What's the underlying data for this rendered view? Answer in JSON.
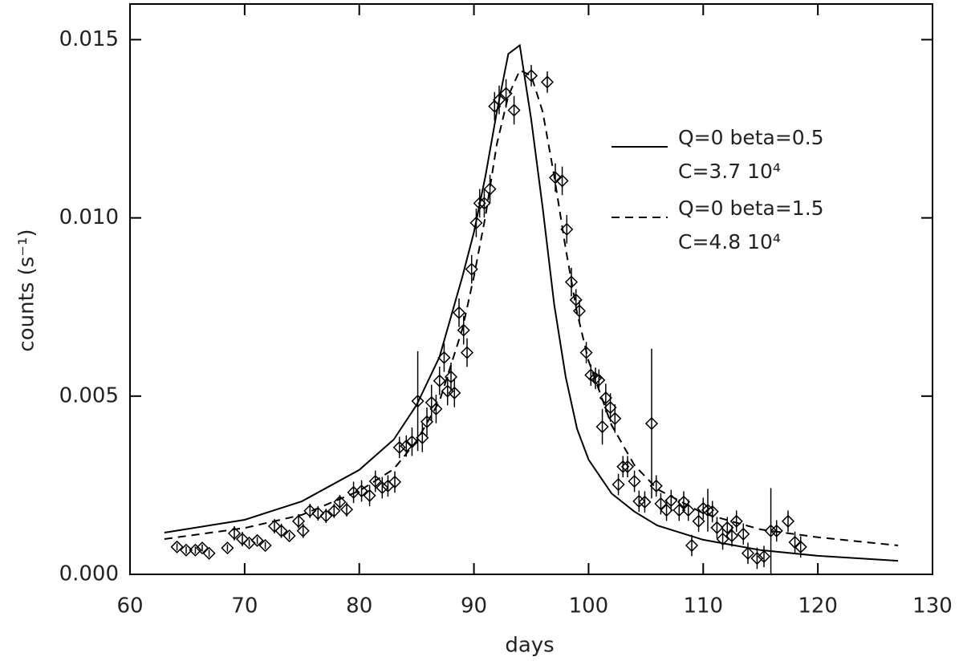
{
  "chart_data": {
    "type": "scatter",
    "xlabel": "days",
    "ylabel": "counts (s⁻¹)",
    "xlim": [
      60,
      130
    ],
    "ylim": [
      0,
      0.016
    ],
    "xticks": [
      60,
      70,
      80,
      90,
      100,
      110,
      120,
      130
    ],
    "yticks": [
      {
        "value": 0,
        "label": "0.000"
      },
      {
        "value": 0.005,
        "label": "0.005"
      },
      {
        "value": 0.01,
        "label": "0.010"
      },
      {
        "value": 0.015,
        "label": "0.015"
      }
    ],
    "color": "#000000",
    "points": {
      "x": [
        64.1,
        64.9,
        65.7,
        66.3,
        66.9,
        68.5,
        69.1,
        69.8,
        70.4,
        71.1,
        71.8,
        72.6,
        73.2,
        73.9,
        74.7,
        75.1,
        75.7,
        76.4,
        77.1,
        77.8,
        78.3,
        78.9,
        79.5,
        80.2,
        80.9,
        81.4,
        82.0,
        82.5,
        83.1,
        83.5,
        84.1,
        84.6,
        85.1,
        85.5,
        85.9,
        86.3,
        86.7,
        87.0,
        87.4,
        87.7,
        88.0,
        88.3,
        88.7,
        89.1,
        89.4,
        89.8,
        90.2,
        90.5,
        90.9,
        91.4,
        91.8,
        92.2,
        92.8,
        93.5,
        95.0,
        96.4,
        97.1,
        97.7,
        98.1,
        98.5,
        98.9,
        99.2,
        99.8,
        100.2,
        100.6,
        100.9,
        101.2,
        101.5,
        101.9,
        102.3,
        102.6,
        103.0,
        103.4,
        104.0,
        104.4,
        104.9,
        105.5,
        105.9,
        106.3,
        106.8,
        107.2,
        107.9,
        108.3,
        108.7,
        109.0,
        109.6,
        110.0,
        110.4,
        110.8,
        111.2,
        111.7,
        112.1,
        112.5,
        112.9,
        113.5,
        113.9,
        114.7,
        115.3,
        115.9,
        116.4,
        117.4,
        118.0,
        118.5
      ],
      "values": [
        0.00077,
        0.00068,
        0.00068,
        0.00074,
        0.00059,
        0.00074,
        0.00115,
        0.00099,
        0.00088,
        0.00095,
        0.00081,
        0.00135,
        0.00122,
        0.00108,
        0.00149,
        0.00122,
        0.00178,
        0.00171,
        0.00164,
        0.00178,
        0.00203,
        0.00182,
        0.0023,
        0.00234,
        0.00221,
        0.00261,
        0.00243,
        0.00248,
        0.00259,
        0.00356,
        0.0036,
        0.00372,
        0.00486,
        0.00383,
        0.00428,
        0.00482,
        0.00464,
        0.00543,
        0.00608,
        0.00514,
        0.00554,
        0.00509,
        0.00734,
        0.00685,
        0.00622,
        0.00856,
        0.00986,
        0.01041,
        0.01041,
        0.01081,
        0.01313,
        0.01331,
        0.01349,
        0.01302,
        0.01399,
        0.01381,
        0.01113,
        0.01104,
        0.00968,
        0.0082,
        0.0077,
        0.00739,
        0.00622,
        0.00559,
        0.0055,
        0.00545,
        0.00414,
        0.00495,
        0.00468,
        0.00437,
        0.00252,
        0.00302,
        0.00302,
        0.00261,
        0.00205,
        0.00203,
        0.00423,
        0.00248,
        0.00198,
        0.0018,
        0.00207,
        0.0018,
        0.00203,
        0.0018,
        0.00081,
        0.00149,
        0.00185,
        0.0018,
        0.00176,
        0.00131,
        0.00099,
        0.00131,
        0.00108,
        0.00149,
        0.00113,
        0.00059,
        0.00045,
        0.0005,
        0.00122,
        0.00122,
        0.00149,
        0.0009,
        0.00077
      ],
      "errors": [
        0.0001,
        0.0001,
        0.0001,
        0.0001,
        0.0001,
        0.0001,
        0.0002,
        0.0002,
        0.0001,
        0.0001,
        0.0001,
        0.0002,
        0.0002,
        0.0001,
        0.0002,
        0.0002,
        0.0002,
        0.0002,
        0.0002,
        0.0002,
        0.0002,
        0.0002,
        0.0003,
        0.0003,
        0.0003,
        0.0003,
        0.0003,
        0.0003,
        0.0003,
        0.0003,
        0.0003,
        0.0004,
        0.0014,
        0.0004,
        0.0004,
        0.0005,
        0.0004,
        0.0004,
        0.0004,
        0.0004,
        0.0004,
        0.0004,
        0.0004,
        0.0004,
        0.0004,
        0.0004,
        0.0004,
        0.0004,
        0.0004,
        0.0004,
        0.0004,
        0.0004,
        0.0004,
        0.0004,
        0.0003,
        0.0003,
        0.0004,
        0.0004,
        0.0004,
        0.0004,
        0.0003,
        0.0003,
        0.0003,
        0.0003,
        0.0003,
        0.0003,
        0.0005,
        0.0004,
        0.0004,
        0.0004,
        0.0003,
        0.0003,
        0.0003,
        0.0003,
        0.0003,
        0.0003,
        0.0021,
        0.0003,
        0.0003,
        0.0003,
        0.0003,
        0.0003,
        0.0003,
        0.0003,
        0.0003,
        0.0003,
        0.0003,
        0.0006,
        0.0003,
        0.0003,
        0.0003,
        0.0003,
        0.0003,
        0.0003,
        0.0003,
        0.0003,
        0.0003,
        0.0003,
        0.0012,
        0.0003,
        0.0003,
        0.0003,
        0.0003
      ]
    },
    "series": [
      {
        "name": "Q=0 beta=0.5",
        "note": "C=3.7 10⁴",
        "dash": false,
        "color": "#000000",
        "x": [
          63,
          70,
          75,
          80,
          83,
          85,
          87,
          89,
          90,
          91,
          92,
          93,
          94,
          95,
          96,
          97,
          98,
          99,
          100,
          102,
          104,
          106,
          110,
          115,
          120,
          127
        ],
        "values": [
          0.00117,
          0.00153,
          0.00205,
          0.00293,
          0.00378,
          0.00475,
          0.0061,
          0.00836,
          0.0096,
          0.01117,
          0.01297,
          0.0146,
          0.01484,
          0.01275,
          0.01027,
          0.00757,
          0.00554,
          0.00408,
          0.00322,
          0.00227,
          0.00176,
          0.00137,
          0.00097,
          0.00068,
          0.00052,
          0.00038
        ]
      },
      {
        "name": "Q=0 beta=1.5",
        "note": "C=4.8 10⁴",
        "dash": true,
        "color": "#000000",
        "x": [
          63,
          70,
          75,
          80,
          83,
          85,
          87,
          89,
          90,
          91,
          92,
          93,
          94,
          95,
          96,
          97,
          98,
          99,
          100,
          102,
          104,
          106,
          110,
          115,
          120,
          127
        ],
        "values": [
          0.00099,
          0.0013,
          0.00167,
          0.00234,
          0.00295,
          0.00374,
          0.00486,
          0.00689,
          0.00836,
          0.01004,
          0.01207,
          0.01342,
          0.01414,
          0.01399,
          0.01297,
          0.01117,
          0.00914,
          0.00734,
          0.00599,
          0.00419,
          0.00306,
          0.00239,
          0.00171,
          0.00126,
          0.00104,
          0.00081
        ]
      }
    ]
  }
}
